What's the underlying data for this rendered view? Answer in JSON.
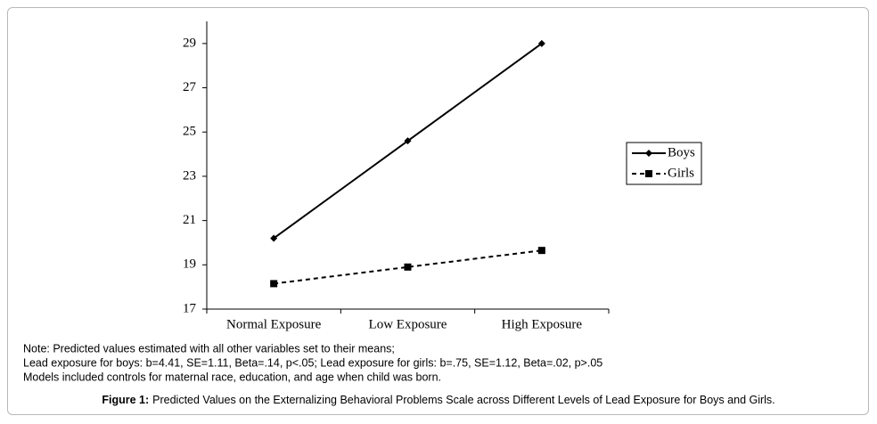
{
  "chart_data": {
    "type": "line",
    "categories": [
      "Normal Exposure",
      "Low Exposure",
      "High Exposure"
    ],
    "series": [
      {
        "name": "Boys",
        "color": "#000000",
        "line_style": "solid",
        "marker": "diamond",
        "values": [
          20.2,
          24.6,
          29.0
        ]
      },
      {
        "name": "Girls",
        "color": "#000000",
        "line_style": "dashed",
        "marker": "square",
        "values": [
          18.15,
          18.9,
          19.65
        ]
      }
    ],
    "ylim": [
      17,
      30
    ],
    "yticks": [
      17,
      19,
      21,
      23,
      25,
      27,
      29
    ],
    "grid": false,
    "legend": "right",
    "notes": [
      "Note: Predicted values estimated with all other variables set to their means;",
      "Lead exposure for boys: b=4.41, SE=1.11, Beta=.14, p<.05; Lead exposure for girls: b=.75, SE=1.12, Beta=.02, p>.05",
      "Models included controls for maternal race, education, and age when child was born."
    ],
    "caption": {
      "label": "Figure 1:",
      "text": "Predicted Values on the Externalizing Behavioral Problems Scale across Different Levels of Lead Exposure for Boys and Girls."
    }
  }
}
